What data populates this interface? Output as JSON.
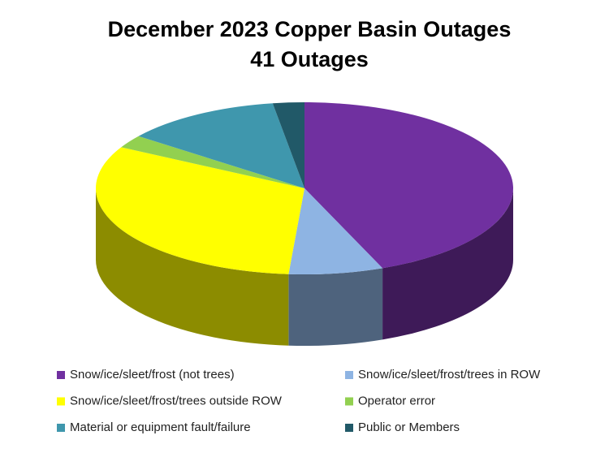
{
  "chart_data": {
    "type": "pie3d",
    "title": "December 2023 Copper Basin Outages",
    "subtitle": "41 Outages",
    "categories": [
      "Snow/ice/sleet/frost (not trees)",
      "Snow/ice/sleet/frost/trees in ROW",
      "Snow/ice/sleet/frost/trees outside ROW",
      "Operator error",
      "Material or equipment fault/failure",
      "Public or Members"
    ],
    "values": [
      18,
      3,
      13,
      1,
      5,
      1
    ],
    "colors": [
      "#7030a0",
      "#8eb4e3",
      "#ffff00",
      "#92d050",
      "#3f97ad",
      "#215968"
    ]
  }
}
